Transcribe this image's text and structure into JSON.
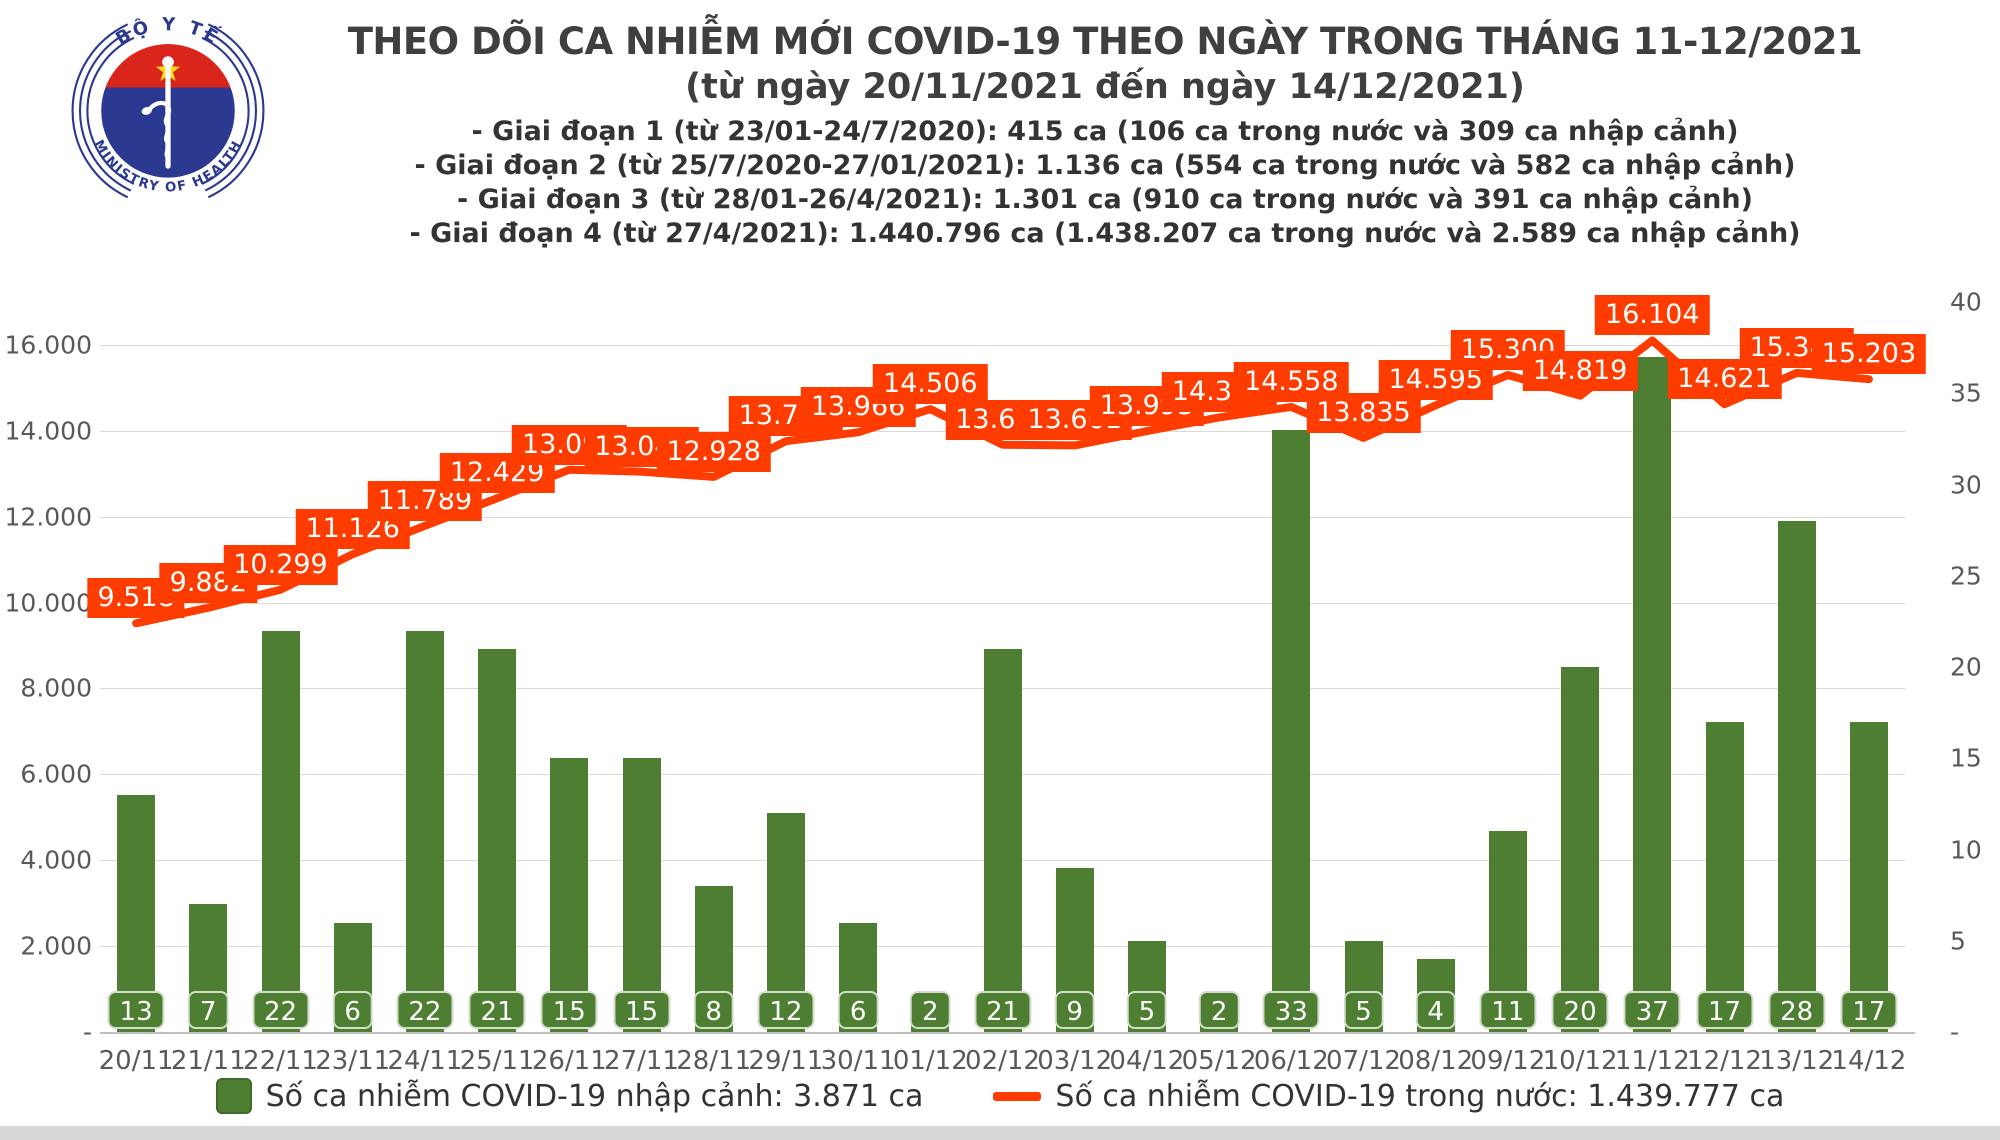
{
  "header": {
    "title": "THEO DÕI CA NHIỄM MỚI COVID-19 THEO NGÀY TRONG THÁNG 11-12/2021",
    "subtitle": "(từ ngày 20/11/2021 đến ngày 14/12/2021)",
    "phases": [
      "- Giai đoạn 1 (từ 23/01-24/7/2020): 415 ca (106 ca trong nước và 309 ca nhập cảnh)",
      "- Giai đoạn 2 (từ 25/7/2020-27/01/2021): 1.136 ca (554 ca trong nước và 582 ca nhập cảnh)",
      "- Giai đoạn 3 (từ 28/01-26/4/2021): 1.301 ca (910 ca trong nước và 391 ca nhập cảnh)",
      "- Giai đoạn 4 (từ 27/4/2021): 1.440.796 ca (1.438.207 ca trong nước và 2.589 ca nhập cảnh)"
    ]
  },
  "logo": {
    "top_text": "BỘ Y TẾ",
    "bottom_text": "MINISTRY OF HEALTH"
  },
  "legend": {
    "items": [
      {
        "label": "Số ca nhiễm COVID-19 nhập cảnh: 3.871 ca",
        "swatch": "bar"
      },
      {
        "label": "Số ca nhiễm COVID-19 trong nước: 1.439.777 ca",
        "swatch": "line"
      }
    ]
  },
  "colors": {
    "accent_red": "#ff3c00",
    "bar_green": "#4e7e32",
    "bar_green_border": "#3f6a27",
    "chip_text": "#ffffff",
    "axis_text": "#595959",
    "grid": "#d9d9d9",
    "logo_blue": "#2b3990",
    "logo_red": "#da251d",
    "logo_star": "#ffde17"
  },
  "chart_data": {
    "type": "bar+line",
    "categories": [
      "20/11",
      "21/11",
      "22/11",
      "23/11",
      "24/11",
      "25/11",
      "26/11",
      "27/11",
      "28/11",
      "29/11",
      "30/11",
      "01/12",
      "02/12",
      "03/12",
      "04/12",
      "05/12",
      "06/12",
      "07/12",
      "08/12",
      "09/12",
      "10/12",
      "11/12",
      "12/12",
      "13/12",
      "14/12"
    ],
    "series": [
      {
        "name": "Số ca nhiễm COVID-19 nhập cảnh: 3.871 ca",
        "type": "bar",
        "axis": "right",
        "values": [
          13,
          7,
          22,
          6,
          22,
          21,
          15,
          15,
          8,
          12,
          6,
          2,
          21,
          9,
          5,
          2,
          33,
          5,
          4,
          11,
          20,
          37,
          17,
          28,
          17
        ]
      },
      {
        "name": "Số ca nhiễm COVID-19 trong nước: 1.439.777 ca",
        "type": "line",
        "axis": "left",
        "values": [
          9518,
          9882,
          10299,
          11126,
          11789,
          12429,
          13094,
          13048,
          12928,
          13758,
          13966,
          14506,
          13677,
          13661,
          13993,
          14312,
          14558,
          13835,
          14595,
          15300,
          14819,
          16104,
          14621,
          15349,
          15203
        ],
        "labels": [
          "9.518",
          "9.882",
          "10.299",
          "11.126",
          "11.789",
          "12.429",
          "13.094",
          "13.048",
          "12.928",
          "13.758",
          "13.966",
          "14.506",
          "13.677",
          "13.661",
          "13.993",
          "14.312",
          "14.558",
          "13.835",
          "14.595",
          "15.300",
          "14.819",
          "16.104",
          "14.621",
          "15.349",
          "15.203"
        ]
      }
    ],
    "left_axis": {
      "min": 0,
      "max": 17000,
      "step": 2000,
      "ticks": [
        "-",
        "2.000",
        "4.000",
        "6.000",
        "8.000",
        "10.000",
        "12.000",
        "14.000",
        "16.000"
      ]
    },
    "right_axis": {
      "min": 0,
      "max": 40,
      "step": 5,
      "ticks": [
        "-",
        "5",
        "10",
        "15",
        "20",
        "25",
        "30",
        "35",
        "40"
      ]
    },
    "grid": true,
    "legend_position": "bottom"
  }
}
